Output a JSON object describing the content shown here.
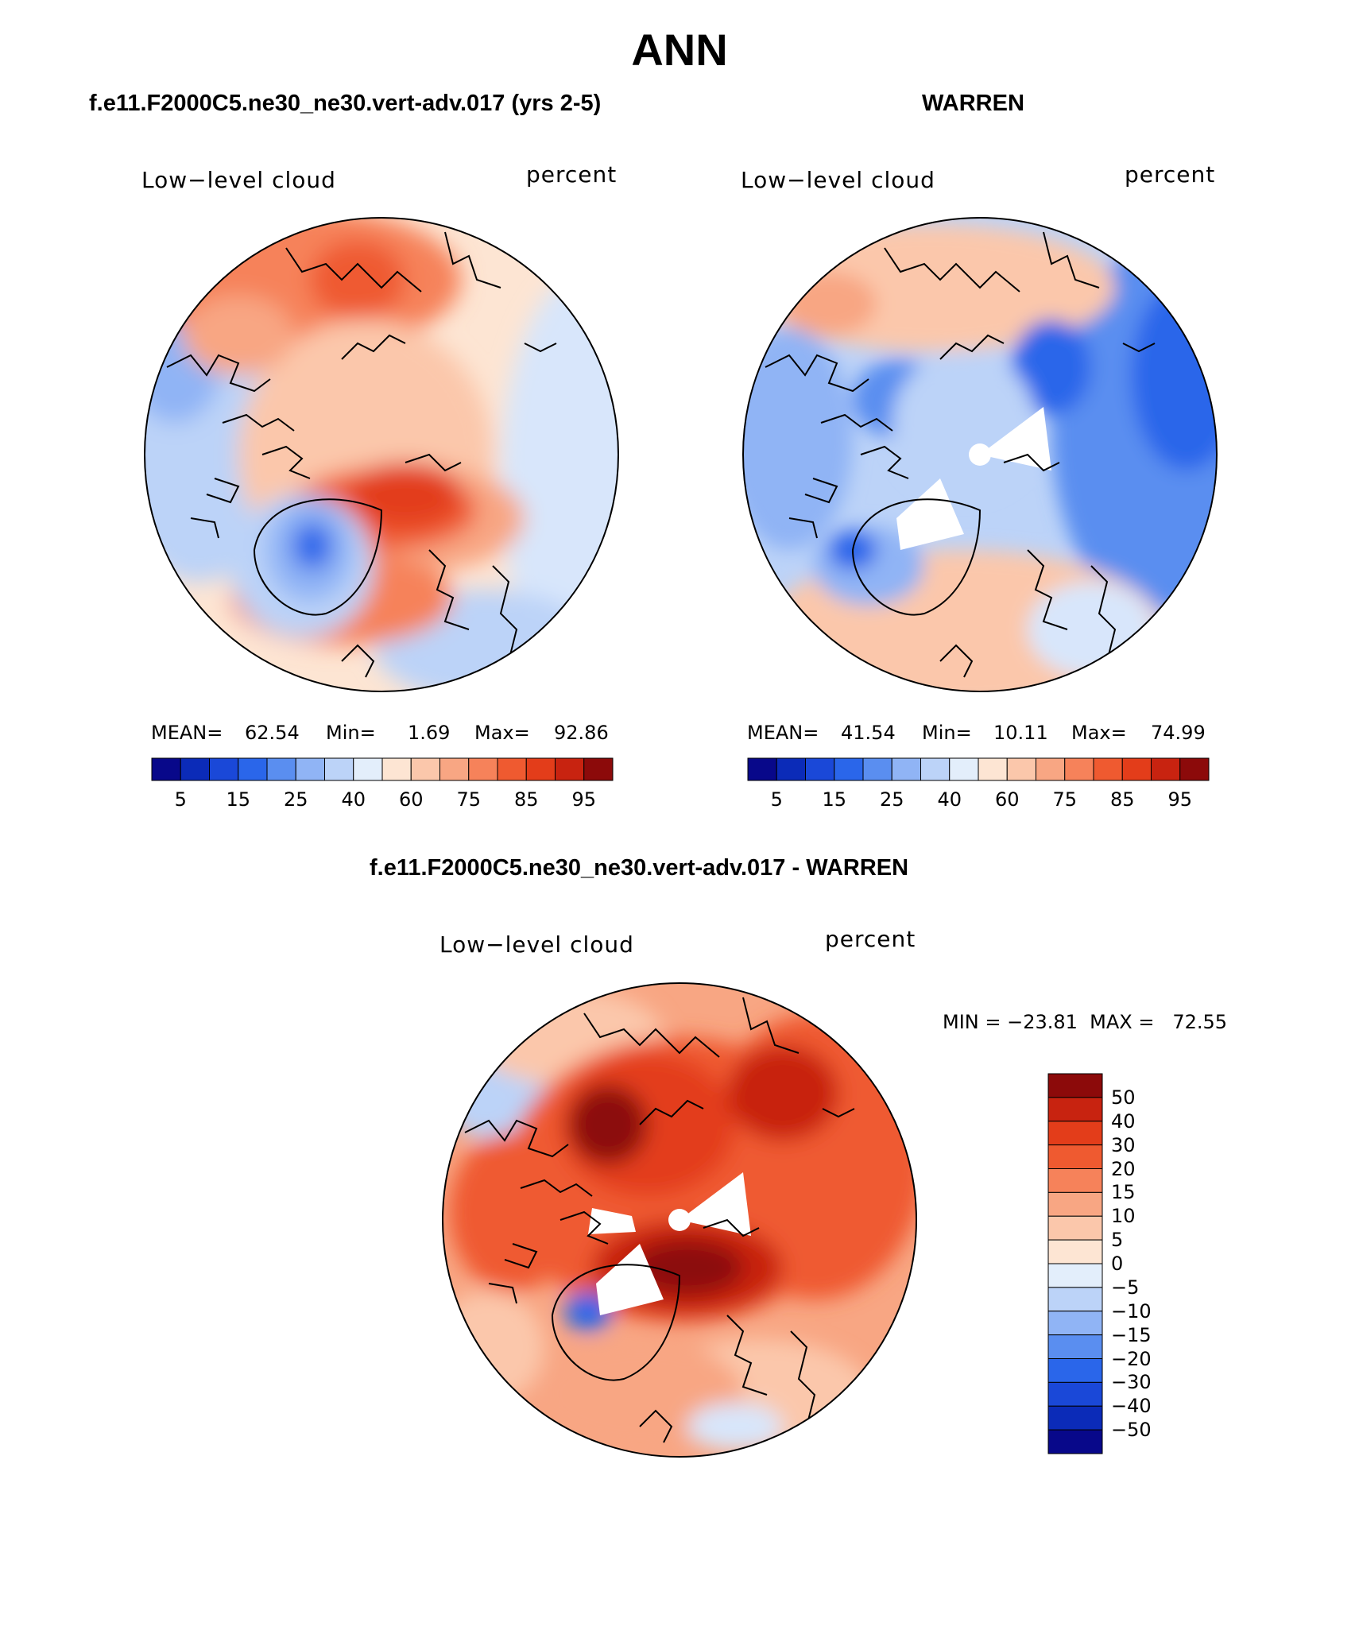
{
  "figure_title": "ANN",
  "top_left": {
    "title": "f.e11.F2000C5.ne30_ne30.vert-adv.017 (yrs 2-5)",
    "variable": "Low−level cloud",
    "units": "percent",
    "stats": {
      "mean_label": "MEAN=",
      "mean": "62.54",
      "min_label": "Min=",
      "min": "1.69",
      "max_label": "Max=",
      "max": "92.86"
    }
  },
  "top_right": {
    "title": "WARREN",
    "variable": "Low−level cloud",
    "units": "percent",
    "stats": {
      "mean_label": "MEAN=",
      "mean": "41.54",
      "min_label": "Min=",
      "min": "10.11",
      "max_label": "Max=",
      "max": "74.99"
    }
  },
  "bottom": {
    "title": "f.e11.F2000C5.ne30_ne30.vert-adv.017 - WARREN",
    "variable": "Low−level cloud",
    "units": "percent",
    "minmax": "MIN = −23.81  MAX =   72.55"
  },
  "abs_colorbar": {
    "colors": [
      "#08088a",
      "#0b2bb8",
      "#1a48d8",
      "#2a66ea",
      "#5a8ef0",
      "#90b4f5",
      "#bcd3f8",
      "#e3eefb",
      "#fde5d3",
      "#fbc7ab",
      "#f8a683",
      "#f6825a",
      "#ef5a30",
      "#e33d1a",
      "#c82310",
      "#8c0a0a"
    ],
    "tick_labels": [
      "5",
      "15",
      "25",
      "40",
      "60",
      "75",
      "85",
      "95"
    ]
  },
  "diff_colorbar": {
    "colors": [
      "#8c0a0a",
      "#c82310",
      "#e33d1a",
      "#ef5a30",
      "#f6825a",
      "#f8a683",
      "#fbc7ab",
      "#fde5d3",
      "#e3eefb",
      "#bcd3f8",
      "#90b4f5",
      "#5a8ef0",
      "#2a66ea",
      "#1a48d8",
      "#0b2bb8",
      "#08088a"
    ],
    "tick_labels": [
      "50",
      "40",
      "30",
      "20",
      "15",
      "10",
      "5",
      "0",
      "−5",
      "−10",
      "−15",
      "−20",
      "−30",
      "−40",
      "−50"
    ]
  }
}
